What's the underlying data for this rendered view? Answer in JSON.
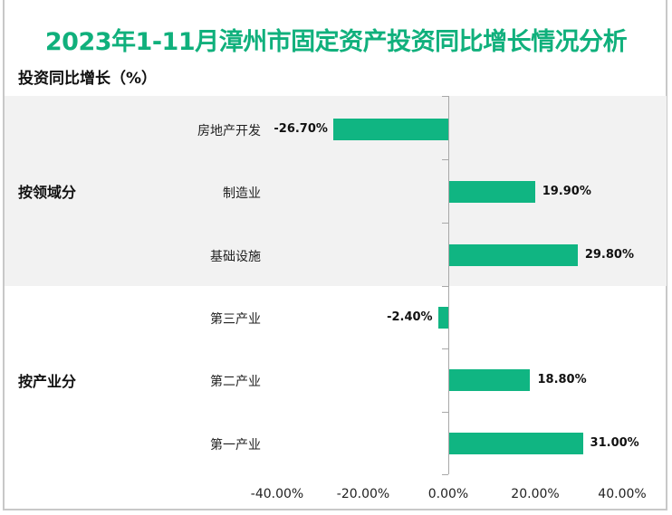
{
  "title": "2023年1-11月漳州市固定资产投资同比增长情况分析",
  "subtitle": "投资同比增长（%）",
  "colors": {
    "title": "#10b07c",
    "bar": "#10b582",
    "band": "#f2f2f2"
  },
  "groups": [
    {
      "label": "按领域分"
    },
    {
      "label": "按产业分"
    }
  ],
  "x_ticks": [
    "-40.00%",
    "-20.00%",
    "0.00%",
    "20.00%",
    "40.00%"
  ],
  "chart_data": {
    "type": "bar",
    "orientation": "horizontal",
    "title": "2023年1-11月漳州市固定资产投资同比增长情况分析",
    "ylabel": "投资同比增长（%）",
    "xlim": [
      -40,
      40
    ],
    "x_ticks": [
      -40,
      -20,
      0,
      20,
      40
    ],
    "groups": [
      {
        "name": "按领域分",
        "categories": [
          "房地产开发",
          "制造业",
          "基础设施"
        ],
        "values": [
          -26.7,
          19.9,
          29.8
        ]
      },
      {
        "name": "按产业分",
        "categories": [
          "第三产业",
          "第二产业",
          "第一产业"
        ],
        "values": [
          -2.4,
          18.8,
          31.0
        ]
      }
    ],
    "categories": [
      "房地产开发",
      "制造业",
      "基础设施",
      "第三产业",
      "第二产业",
      "第一产业"
    ],
    "values": [
      -26.7,
      19.9,
      29.8,
      -2.4,
      18.8,
      31.0
    ],
    "value_labels": [
      "-26.70%",
      "19.90%",
      "29.80%",
      "-2.40%",
      "18.80%",
      "31.00%"
    ],
    "legend": null,
    "grid": false
  }
}
